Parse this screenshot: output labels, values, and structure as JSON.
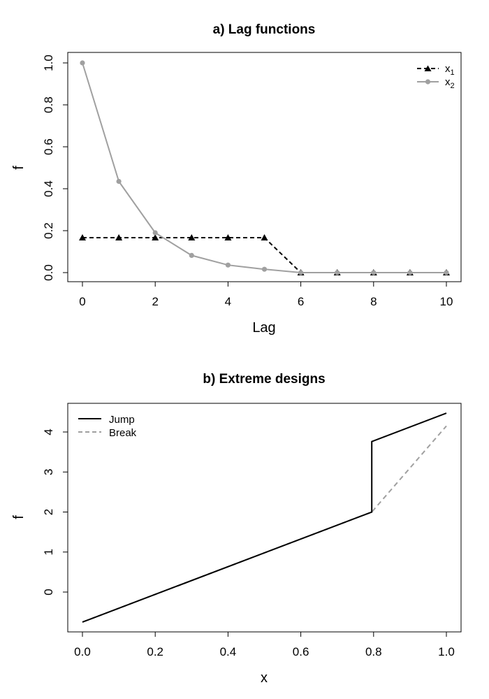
{
  "chart_data": [
    {
      "type": "line",
      "title": "a) Lag functions",
      "xlabel": "Lag",
      "ylabel": "f",
      "xlim": [
        0,
        10
      ],
      "ylim": [
        0,
        1
      ],
      "xticks": [
        "0",
        "2",
        "4",
        "6",
        "8",
        "10"
      ],
      "yticks": [
        "0.0",
        "0.2",
        "0.4",
        "0.6",
        "0.8",
        "1.0"
      ],
      "grid": false,
      "legend_position": "top-right",
      "x": [
        0,
        1,
        2,
        3,
        4,
        5,
        6,
        7,
        8,
        9,
        10
      ],
      "series": [
        {
          "name": "x1",
          "label_main": "x",
          "label_sub": "1",
          "color": "#000000",
          "line_style": "dashed",
          "marker": "triangle",
          "values": [
            0.1667,
            0.1667,
            0.1667,
            0.1667,
            0.1667,
            0.1667,
            0.0,
            0.0,
            0.0,
            0.0,
            0.0
          ]
        },
        {
          "name": "x2",
          "label_main": "x",
          "label_sub": "2",
          "color": "#a0a0a0",
          "line_style": "solid",
          "marker": "circle",
          "values": [
            1.0,
            0.435,
            0.19,
            0.082,
            0.036,
            0.016,
            0.0,
            0.0,
            0.0,
            0.0,
            0.0
          ]
        }
      ]
    },
    {
      "type": "line",
      "title": "b) Extreme designs",
      "xlabel": "x",
      "ylabel": "f",
      "xlim": [
        0,
        1
      ],
      "ylim": [
        -0.75,
        4.5
      ],
      "xticks": [
        "0.0",
        "0.2",
        "0.4",
        "0.6",
        "0.8",
        "1.0"
      ],
      "yticks": [
        "0",
        "1",
        "2",
        "3",
        "4"
      ],
      "grid": false,
      "legend_position": "top-left",
      "series": [
        {
          "name": "Jump",
          "color": "#000000",
          "line_style": "solid",
          "points": [
            [
              0.0,
              -0.75
            ],
            [
              0.795,
              2.0
            ],
            [
              0.795,
              3.76
            ],
            [
              1.0,
              4.47
            ]
          ]
        },
        {
          "name": "Break",
          "color": "#a0a0a0",
          "line_style": "dashed",
          "points": [
            [
              0.0,
              -0.75
            ],
            [
              0.795,
              2.0
            ],
            [
              1.0,
              4.15
            ]
          ]
        }
      ]
    }
  ]
}
